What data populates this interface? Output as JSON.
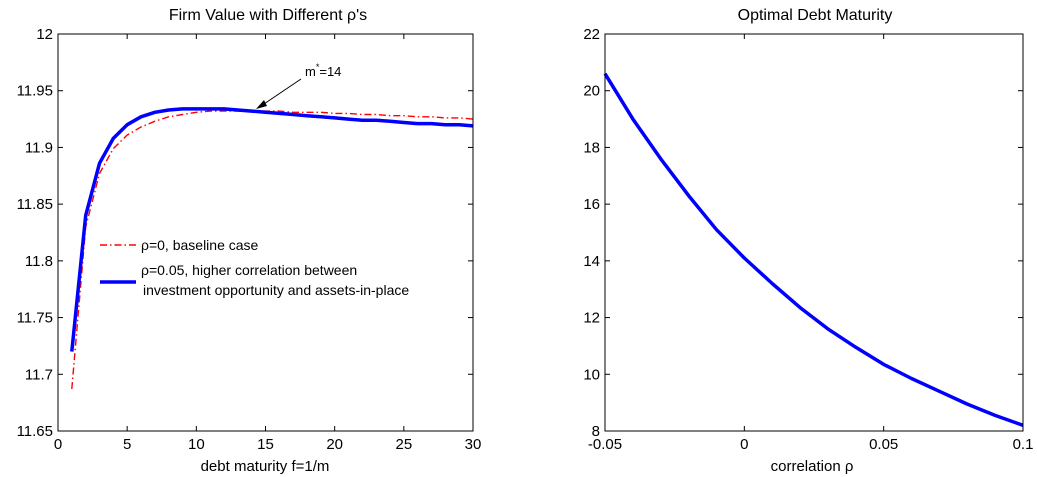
{
  "chart_data": [
    {
      "type": "line",
      "title": "Firm Value with Different ρ's",
      "xlabel": "debt maturity f=1/m",
      "ylabel": "",
      "xlim": [
        0,
        30
      ],
      "ylim": [
        11.65,
        12
      ],
      "xticks": [
        0,
        5,
        10,
        15,
        20,
        25,
        30
      ],
      "yticks": [
        11.65,
        11.7,
        11.75,
        11.8,
        11.85,
        11.9,
        11.95,
        12
      ],
      "xtick_labels": [
        "0",
        "5",
        "10",
        "15",
        "20",
        "25",
        "30"
      ],
      "ytick_labels": [
        "11.65",
        "11.7",
        "11.75",
        "11.8",
        "11.85",
        "11.9",
        "11.95",
        "12"
      ],
      "grid": false,
      "legend_position": "center-left",
      "annotation": {
        "base": "m",
        "sup": "*",
        "rest": "=14",
        "x": 14,
        "y": 11.932
      },
      "series": [
        {
          "name": "ρ=0, baseline case",
          "color": "#ff0000",
          "style": "dash-dot",
          "x": [
            1,
            2,
            3,
            4,
            5,
            6,
            7,
            8,
            9,
            10,
            11,
            12,
            13,
            14,
            15,
            16,
            17,
            18,
            19,
            20,
            21,
            22,
            23,
            24,
            25,
            26,
            27,
            28,
            29,
            30
          ],
          "y": [
            11.687,
            11.83,
            11.877,
            11.899,
            11.911,
            11.918,
            11.923,
            11.927,
            11.929,
            11.931,
            11.932,
            11.932,
            11.932,
            11.932,
            11.932,
            11.932,
            11.931,
            11.931,
            11.931,
            11.93,
            11.93,
            11.929,
            11.929,
            11.928,
            11.928,
            11.927,
            11.927,
            11.926,
            11.926,
            11.925
          ]
        },
        {
          "name": "ρ=0.05, higher correlation between",
          "name_line2": "investment opportunity and assets-in-place",
          "color": "#0000ff",
          "style": "solid",
          "x": [
            1,
            2,
            3,
            4,
            5,
            6,
            7,
            8,
            9,
            10,
            11,
            12,
            13,
            14,
            15,
            16,
            17,
            18,
            19,
            20,
            21,
            22,
            23,
            24,
            25,
            26,
            27,
            28,
            29,
            30
          ],
          "y": [
            11.72,
            11.84,
            11.886,
            11.908,
            11.92,
            11.927,
            11.931,
            11.933,
            11.934,
            11.934,
            11.934,
            11.934,
            11.933,
            11.932,
            11.931,
            11.93,
            11.929,
            11.928,
            11.927,
            11.926,
            11.925,
            11.924,
            11.924,
            11.923,
            11.922,
            11.921,
            11.921,
            11.92,
            11.92,
            11.919
          ]
        }
      ]
    },
    {
      "type": "line",
      "title": "Optimal Debt Maturity",
      "xlabel": "correlation ρ",
      "ylabel": "",
      "xlim": [
        -0.05,
        0.1
      ],
      "ylim": [
        8,
        22
      ],
      "xticks": [
        -0.05,
        0,
        0.05,
        0.1
      ],
      "yticks": [
        8,
        10,
        12,
        14,
        16,
        18,
        20,
        22
      ],
      "xtick_labels": [
        "-0.05",
        "0",
        "0.05",
        "0.1"
      ],
      "ytick_labels": [
        "8",
        "10",
        "12",
        "14",
        "16",
        "18",
        "20",
        "22"
      ],
      "grid": false,
      "series": [
        {
          "color": "#0000ff",
          "style": "solid",
          "x": [
            -0.05,
            -0.04,
            -0.03,
            -0.02,
            -0.01,
            0,
            0.01,
            0.02,
            0.03,
            0.04,
            0.05,
            0.06,
            0.07,
            0.08,
            0.09,
            0.1
          ],
          "y": [
            20.6,
            19.0,
            17.6,
            16.3,
            15.1,
            14.1,
            13.2,
            12.35,
            11.6,
            10.95,
            10.35,
            9.85,
            9.4,
            8.95,
            8.55,
            8.2
          ]
        }
      ]
    }
  ]
}
